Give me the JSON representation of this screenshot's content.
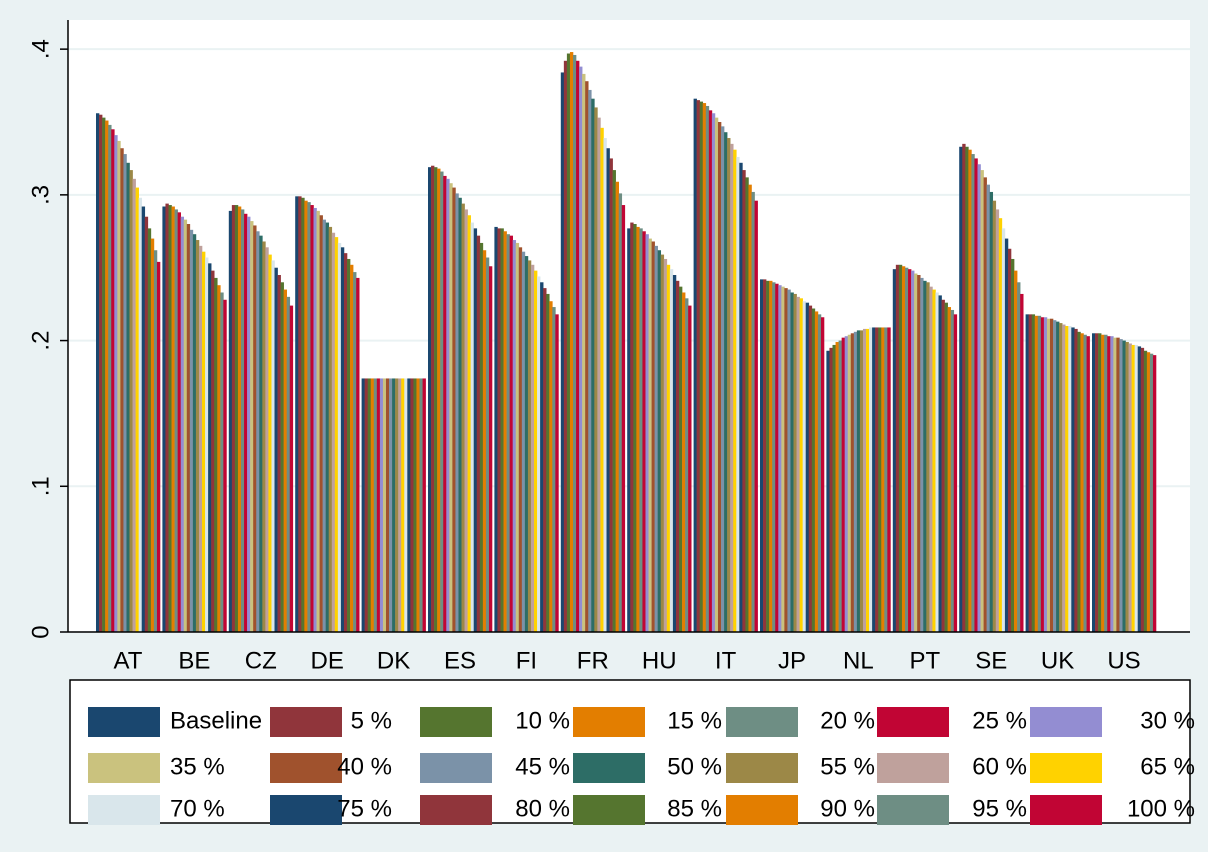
{
  "chart_data": {
    "type": "bar",
    "categories": [
      "AT",
      "BE",
      "CZ",
      "DE",
      "DK",
      "ES",
      "FI",
      "FR",
      "HU",
      "IT",
      "JP",
      "NL",
      "PT",
      "SE",
      "UK",
      "US"
    ],
    "ylim": [
      0,
      0.42
    ],
    "yticks": [
      0,
      {
        "value": 0.1,
        "label": ".1"
      },
      {
        "value": 0.2,
        "label": ".2"
      },
      {
        "value": 0.3,
        "label": ".3"
      },
      {
        "value": 0.4,
        "label": ".4"
      }
    ],
    "grid": true,
    "legend": "bottom",
    "series": [
      {
        "name": "Baseline",
        "color": "#1a476f",
        "values": [
          0.356,
          0.292,
          0.289,
          0.299,
          0.174,
          0.319,
          0.278,
          0.384,
          0.277,
          0.366,
          0.242,
          0.193,
          0.249,
          0.333,
          0.218,
          0.205
        ]
      },
      {
        "name": "5 %",
        "color": "#90353b",
        "values": [
          0.355,
          0.294,
          0.293,
          0.299,
          0.174,
          0.32,
          0.277,
          0.392,
          0.281,
          0.365,
          0.242,
          0.195,
          0.252,
          0.335,
          0.218,
          0.205
        ]
      },
      {
        "name": "10 %",
        "color": "#55752f",
        "values": [
          0.353,
          0.293,
          0.293,
          0.298,
          0.174,
          0.319,
          0.277,
          0.397,
          0.28,
          0.364,
          0.241,
          0.197,
          0.252,
          0.333,
          0.218,
          0.205
        ]
      },
      {
        "name": "15 %",
        "color": "#e37e00",
        "values": [
          0.351,
          0.292,
          0.292,
          0.296,
          0.174,
          0.318,
          0.275,
          0.398,
          0.278,
          0.363,
          0.241,
          0.199,
          0.251,
          0.331,
          0.217,
          0.204
        ]
      },
      {
        "name": "20 %",
        "color": "#6e8e84",
        "values": [
          0.348,
          0.29,
          0.29,
          0.295,
          0.174,
          0.316,
          0.273,
          0.396,
          0.277,
          0.361,
          0.24,
          0.2,
          0.25,
          0.328,
          0.217,
          0.204
        ]
      },
      {
        "name": "25 %",
        "color": "#c10534",
        "values": [
          0.345,
          0.288,
          0.287,
          0.293,
          0.174,
          0.313,
          0.272,
          0.392,
          0.275,
          0.358,
          0.239,
          0.202,
          0.249,
          0.325,
          0.216,
          0.203
        ]
      },
      {
        "name": "30 %",
        "color": "#938dd2",
        "values": [
          0.341,
          0.285,
          0.285,
          0.291,
          0.174,
          0.311,
          0.269,
          0.388,
          0.273,
          0.356,
          0.238,
          0.203,
          0.248,
          0.321,
          0.216,
          0.203
        ]
      },
      {
        "name": "35 %",
        "color": "#cac27e",
        "values": [
          0.337,
          0.283,
          0.282,
          0.289,
          0.174,
          0.308,
          0.267,
          0.383,
          0.27,
          0.353,
          0.237,
          0.204,
          0.246,
          0.317,
          0.215,
          0.202
        ]
      },
      {
        "name": "40 %",
        "color": "#a0522d",
        "values": [
          0.332,
          0.28,
          0.279,
          0.286,
          0.174,
          0.305,
          0.264,
          0.378,
          0.268,
          0.35,
          0.236,
          0.205,
          0.245,
          0.312,
          0.215,
          0.202
        ]
      },
      {
        "name": "45 %",
        "color": "#7b92a8",
        "values": [
          0.328,
          0.276,
          0.275,
          0.283,
          0.174,
          0.301,
          0.261,
          0.372,
          0.265,
          0.347,
          0.235,
          0.206,
          0.243,
          0.307,
          0.214,
          0.201
        ]
      },
      {
        "name": "50 %",
        "color": "#2d6d66",
        "values": [
          0.322,
          0.273,
          0.272,
          0.281,
          0.174,
          0.298,
          0.258,
          0.366,
          0.262,
          0.343,
          0.233,
          0.207,
          0.241,
          0.302,
          0.213,
          0.2
        ]
      },
      {
        "name": "55 %",
        "color": "#9c8847",
        "values": [
          0.317,
          0.269,
          0.268,
          0.278,
          0.174,
          0.294,
          0.255,
          0.36,
          0.259,
          0.339,
          0.232,
          0.207,
          0.24,
          0.296,
          0.212,
          0.199
        ]
      },
      {
        "name": "60 %",
        "color": "#bfa19c",
        "values": [
          0.311,
          0.265,
          0.264,
          0.274,
          0.174,
          0.29,
          0.252,
          0.353,
          0.256,
          0.335,
          0.23,
          0.208,
          0.237,
          0.29,
          0.211,
          0.198
        ]
      },
      {
        "name": "65 %",
        "color": "#ffd200",
        "values": [
          0.305,
          0.261,
          0.259,
          0.271,
          0.174,
          0.286,
          0.248,
          0.346,
          0.252,
          0.331,
          0.229,
          0.208,
          0.235,
          0.284,
          0.21,
          0.197
        ]
      },
      {
        "name": "70 %",
        "color": "#d9e6eb",
        "values": [
          0.298,
          0.257,
          0.255,
          0.267,
          0.174,
          0.281,
          0.244,
          0.339,
          0.249,
          0.326,
          0.227,
          0.209,
          0.233,
          0.277,
          0.21,
          0.197
        ]
      },
      {
        "name": "75 %",
        "color": "#1a476f",
        "values": [
          0.292,
          0.253,
          0.25,
          0.264,
          0.174,
          0.277,
          0.24,
          0.332,
          0.245,
          0.322,
          0.226,
          0.209,
          0.231,
          0.27,
          0.209,
          0.196
        ]
      },
      {
        "name": "80 %",
        "color": "#90353b",
        "values": [
          0.285,
          0.248,
          0.245,
          0.26,
          0.174,
          0.272,
          0.236,
          0.325,
          0.241,
          0.317,
          0.224,
          0.209,
          0.228,
          0.263,
          0.208,
          0.195
        ]
      },
      {
        "name": "85 %",
        "color": "#55752f",
        "values": [
          0.277,
          0.243,
          0.24,
          0.256,
          0.174,
          0.267,
          0.232,
          0.317,
          0.237,
          0.312,
          0.222,
          0.209,
          0.226,
          0.256,
          0.206,
          0.193
        ]
      },
      {
        "name": "90 %",
        "color": "#e37e00",
        "values": [
          0.27,
          0.238,
          0.235,
          0.252,
          0.174,
          0.262,
          0.227,
          0.309,
          0.233,
          0.307,
          0.22,
          0.209,
          0.223,
          0.248,
          0.205,
          0.192
        ]
      },
      {
        "name": "95 %",
        "color": "#6e8e84",
        "values": [
          0.262,
          0.233,
          0.23,
          0.247,
          0.174,
          0.257,
          0.223,
          0.301,
          0.229,
          0.302,
          0.218,
          0.209,
          0.221,
          0.24,
          0.204,
          0.191
        ]
      },
      {
        "name": "100 %",
        "color": "#c10534",
        "values": [
          0.254,
          0.228,
          0.224,
          0.243,
          0.174,
          0.251,
          0.218,
          0.293,
          0.224,
          0.296,
          0.216,
          0.209,
          0.218,
          0.232,
          0.203,
          0.19
        ]
      }
    ]
  }
}
